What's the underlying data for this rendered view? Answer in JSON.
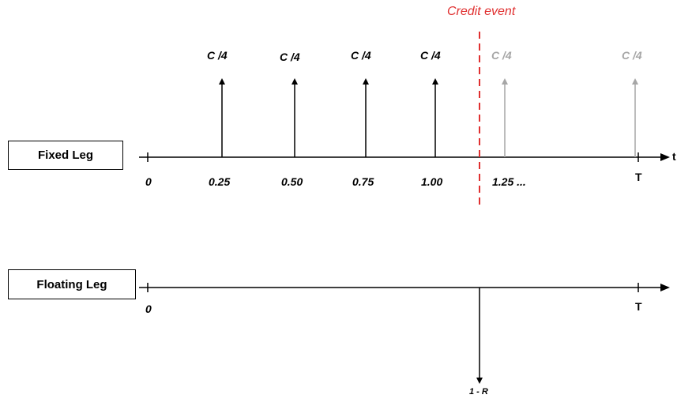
{
  "title": "Credit event",
  "colors": {
    "axis": "#000000",
    "paid": "#000000",
    "future": "#a6a6a6",
    "credit_event": "#e03030"
  },
  "fixed_leg": {
    "label": "Fixed Leg",
    "axis_end_label": "t",
    "origin_label": "0",
    "end_label": "T",
    "payments": [
      {
        "time": "0.25",
        "amount": "C /4",
        "status": "paid"
      },
      {
        "time": "0.50",
        "amount": "C /4",
        "status": "paid"
      },
      {
        "time": "0.75",
        "amount": "C /4",
        "status": "paid"
      },
      {
        "time": "1.00",
        "amount": "C /4",
        "status": "paid"
      },
      {
        "time": "1.25 ...",
        "amount": "C /4",
        "status": "not-paid"
      },
      {
        "time": "",
        "amount": "C /4",
        "status": "not-paid"
      }
    ]
  },
  "floating_leg": {
    "label": "Floating Leg",
    "origin_label": "0",
    "end_label": "T",
    "protection_payment": "1 - R"
  }
}
